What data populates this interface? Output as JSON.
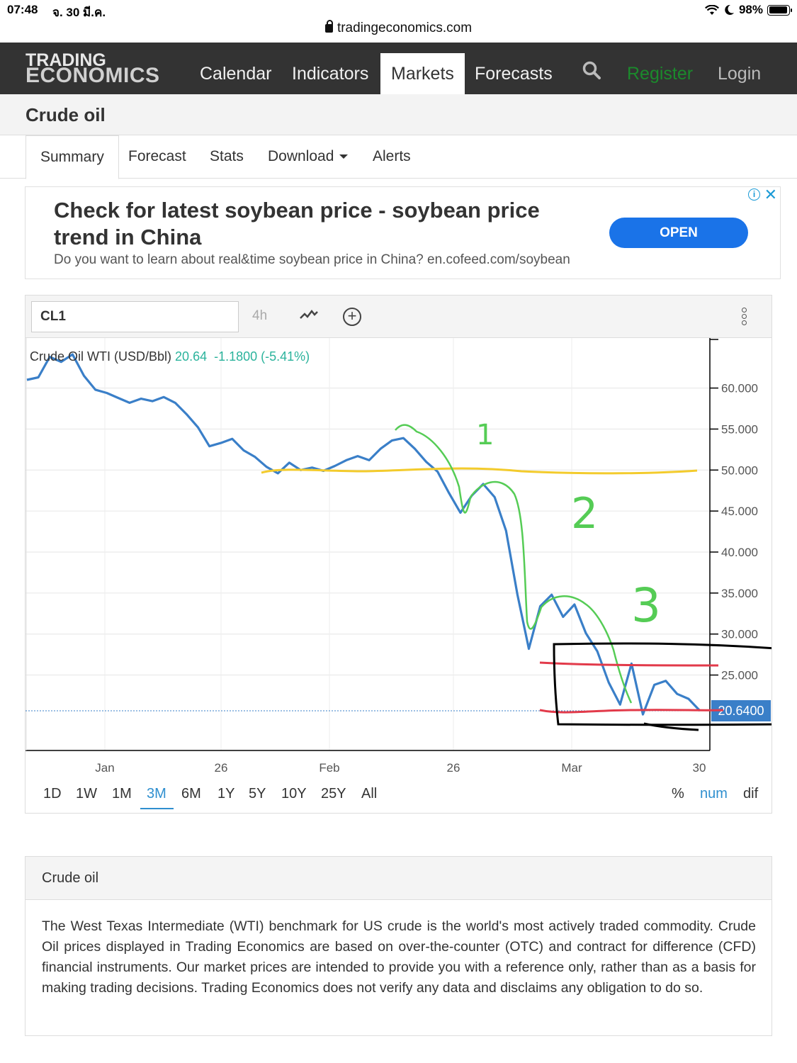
{
  "status": {
    "time": "07:48",
    "date": "จ. 30 มี.ค.",
    "battery": "98%"
  },
  "browser": {
    "url": "tradingeconomics.com"
  },
  "nav": {
    "logo_line1": "TRADING",
    "logo_line2": "ECONOMICS",
    "items": [
      "Calendar",
      "Indicators",
      "Markets",
      "Forecasts"
    ],
    "active": "Markets",
    "register": "Register",
    "login": "Login"
  },
  "page": {
    "title": "Crude oil"
  },
  "tabs": [
    "Summary",
    "Forecast",
    "Stats",
    "Download",
    "Alerts"
  ],
  "ad": {
    "headline": "Check for latest soybean price - soybean price trend in China",
    "description": "Do you want to learn about real&time soybean price in China? en.cofeed.com/soybean",
    "button": "OPEN"
  },
  "chart": {
    "symbol": "CL1",
    "interval": "4h",
    "legend_name": "Crude Oil WTI (USD/Bbl)",
    "legend_price": "20.64",
    "legend_change": "-1.1800 (-5.41%)",
    "last_price_label": "20.6400",
    "ranges": [
      "1D",
      "1W",
      "1M",
      "3M",
      "6M",
      "1Y",
      "5Y",
      "10Y",
      "25Y",
      "All"
    ],
    "active_range": "3M",
    "modes": [
      "%",
      "num",
      "dif"
    ],
    "active_mode": "num",
    "annotations": [
      "1",
      "2",
      "3"
    ]
  },
  "chart_data": {
    "type": "line",
    "series": [
      {
        "name": "Crude Oil WTI (USD/Bbl)",
        "values": [
          61.0,
          61.3,
          63.8,
          63.2,
          64.1,
          61.5,
          59.8,
          59.4,
          58.8,
          58.2,
          58.7,
          58.4,
          58.9,
          58.2,
          56.8,
          55.2,
          52.9,
          53.3,
          53.8,
          52.4,
          51.6,
          50.4,
          49.6,
          50.9,
          50.0,
          50.3,
          49.9,
          50.5,
          51.2,
          51.7,
          51.2,
          52.6,
          53.6,
          53.9,
          52.6,
          51.0,
          49.8,
          47.2,
          44.8,
          46.9,
          48.3,
          46.7,
          42.6,
          34.8,
          28.2,
          33.4,
          34.8,
          32.1,
          33.6,
          30.1,
          27.9,
          24.1,
          21.4,
          26.4,
          20.2,
          23.8,
          24.3,
          22.7,
          22.1,
          20.64
        ],
        "color": "#3a7fc8"
      }
    ],
    "x_tick_labels": [
      "Jan",
      "26",
      "Feb",
      "26",
      "Mar",
      "30"
    ],
    "y_tick_labels": [
      "60.000",
      "55.000",
      "50.000",
      "45.000",
      "40.000",
      "35.000",
      "30.000",
      "25.000"
    ],
    "ylim": [
      15.8,
      66.1
    ],
    "grid": true
  }
}
